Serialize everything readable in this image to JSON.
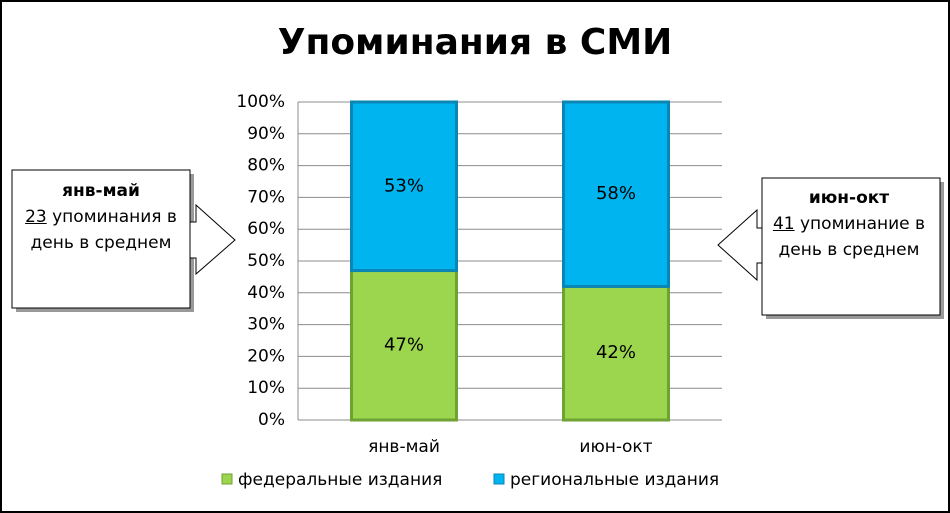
{
  "chart_data": {
    "type": "stacked_bar_100",
    "title": "Упоминания в СМИ",
    "categories": [
      "янв-май",
      "июн-окт"
    ],
    "series": [
      {
        "name": "федеральные издания",
        "color": "#9cd64f",
        "values": [
          47,
          42
        ],
        "value_labels": [
          "47%",
          "42%"
        ]
      },
      {
        "name": "региональные издания",
        "color": "#00b4f0",
        "values": [
          53,
          58
        ],
        "value_labels": [
          "53%",
          "58%"
        ]
      }
    ],
    "ylim": [
      0,
      100
    ],
    "yticks": [
      {
        "value": 0,
        "label": "0%"
      },
      {
        "value": 10,
        "label": "10%"
      },
      {
        "value": 20,
        "label": "20%"
      },
      {
        "value": 30,
        "label": "30%"
      },
      {
        "value": 40,
        "label": "40%"
      },
      {
        "value": 50,
        "label": "50%"
      },
      {
        "value": 60,
        "label": "60%"
      },
      {
        "value": 70,
        "label": "70%"
      },
      {
        "value": 80,
        "label": "80%"
      },
      {
        "value": 90,
        "label": "90%"
      },
      {
        "value": 100,
        "label": "100%"
      }
    ],
    "grid": true,
    "legend": "bottom",
    "annotations": [
      {
        "title": "янв-май",
        "number": 23,
        "text": "упоминания в день в среднем"
      },
      {
        "title": "июн-окт",
        "number": 41,
        "text": "упоминание в день в среднем"
      }
    ]
  }
}
